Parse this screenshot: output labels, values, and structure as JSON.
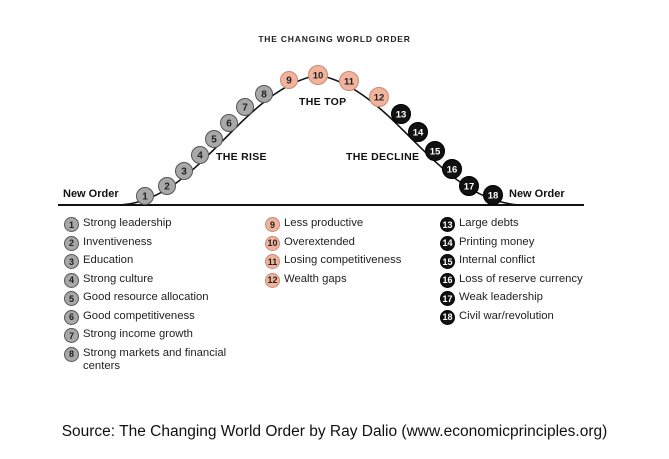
{
  "title": "THE CHANGING WORLD ORDER",
  "phases": {
    "rise": "THE RISE",
    "top": "THE TOP",
    "decline": "THE DECLINE"
  },
  "order_labels": {
    "left": "New Order",
    "right": "New Order"
  },
  "colors": {
    "rise": "#a8a8a8",
    "top": "#f2b39d",
    "decline": "#111111"
  },
  "stages": [
    {
      "n": "1",
      "label": "Strong leadership",
      "group": "rise"
    },
    {
      "n": "2",
      "label": "Inventiveness",
      "group": "rise"
    },
    {
      "n": "3",
      "label": "Education",
      "group": "rise"
    },
    {
      "n": "4",
      "label": "Strong culture",
      "group": "rise"
    },
    {
      "n": "5",
      "label": "Good resource allocation",
      "group": "rise"
    },
    {
      "n": "6",
      "label": "Good competitiveness",
      "group": "rise"
    },
    {
      "n": "7",
      "label": "Strong income growth",
      "group": "rise"
    },
    {
      "n": "8",
      "label": "Strong markets and financial centers",
      "group": "rise"
    },
    {
      "n": "9",
      "label": "Less productive",
      "group": "top"
    },
    {
      "n": "10",
      "label": "Overextended",
      "group": "top"
    },
    {
      "n": "11",
      "label": "Losing competitiveness",
      "group": "top"
    },
    {
      "n": "12",
      "label": "Wealth gaps",
      "group": "top"
    },
    {
      "n": "13",
      "label": "Large debts",
      "group": "decline"
    },
    {
      "n": "14",
      "label": "Printing money",
      "group": "decline"
    },
    {
      "n": "15",
      "label": "Internal conflict",
      "group": "decline"
    },
    {
      "n": "16",
      "label": "Loss of reserve currency",
      "group": "decline"
    },
    {
      "n": "17",
      "label": "Weak leadership",
      "group": "decline"
    },
    {
      "n": "18",
      "label": "Civil war/revolution",
      "group": "decline"
    }
  ],
  "source": "Source: The Changing World Order by Ray Dalio (www.economicprinciples.org)"
}
